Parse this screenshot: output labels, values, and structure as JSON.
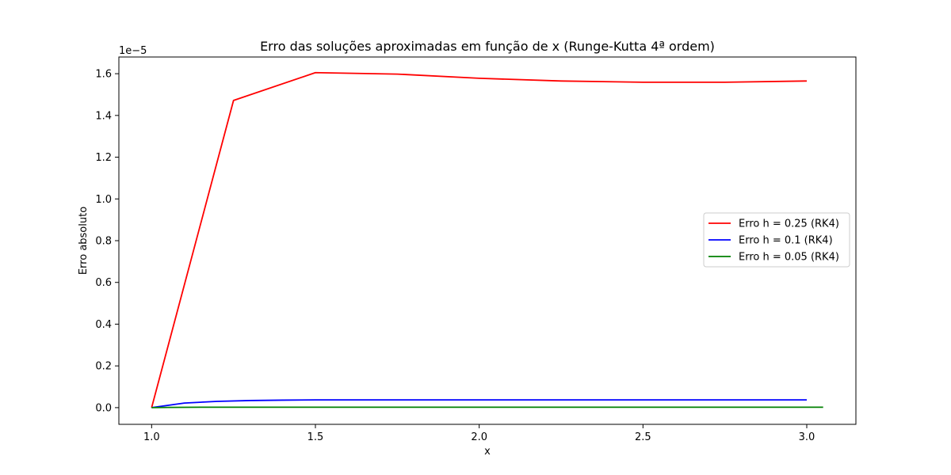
{
  "chart_data": {
    "type": "line",
    "title": "Erro das soluções aproximadas em função de x (Runge-Kutta 4ª ordem)",
    "xlabel": "x",
    "ylabel": "Erro absoluto",
    "y_offset_label": "1e−5",
    "xlim": [
      0.9,
      3.15
    ],
    "ylim": [
      -0.08,
      1.68
    ],
    "y_scale_note": "values in units of 1e-5",
    "x_ticks": [
      1.0,
      1.5,
      2.0,
      2.5,
      3.0
    ],
    "x_tick_labels": [
      "1.0",
      "1.5",
      "2.0",
      "2.5",
      "3.0"
    ],
    "y_ticks": [
      0.0,
      0.2,
      0.4,
      0.6,
      0.8,
      1.0,
      1.2,
      1.4,
      1.6
    ],
    "y_tick_labels": [
      "0.0",
      "0.2",
      "0.4",
      "0.6",
      "0.8",
      "1.0",
      "1.2",
      "1.4",
      "1.6"
    ],
    "grid": false,
    "legend_position": "center-right",
    "series": [
      {
        "name": "Erro h = 0.25 (RK4)",
        "color": "#ff0000",
        "x": [
          1.0,
          1.25,
          1.5,
          1.75,
          2.0,
          2.25,
          2.5,
          2.75,
          3.0
        ],
        "y": [
          0.0,
          1.472,
          1.605,
          1.598,
          1.578,
          1.565,
          1.559,
          1.559,
          1.565
        ]
      },
      {
        "name": "Erro h = 0.1 (RK4)",
        "color": "#0000ff",
        "x": [
          1.0,
          1.1,
          1.2,
          1.3,
          1.4,
          1.5,
          1.6,
          1.7,
          1.8,
          1.9,
          2.0,
          2.1,
          2.2,
          2.3,
          2.4,
          2.5,
          2.6,
          2.7,
          2.8,
          2.9,
          3.0
        ],
        "y": [
          0.0,
          0.022,
          0.03,
          0.034,
          0.036,
          0.037,
          0.037,
          0.037,
          0.037,
          0.037,
          0.037,
          0.037,
          0.037,
          0.037,
          0.037,
          0.037,
          0.037,
          0.037,
          0.037,
          0.037,
          0.037
        ]
      },
      {
        "name": "Erro h = 0.05 (RK4)",
        "color": "#008000",
        "x": [
          1.0,
          1.05,
          1.1,
          1.15,
          1.2,
          1.25,
          1.3,
          1.35,
          1.4,
          1.5,
          1.6,
          1.7,
          1.8,
          1.9,
          2.0,
          2.1,
          2.2,
          2.3,
          2.4,
          2.5,
          2.6,
          2.7,
          2.8,
          2.9,
          3.0,
          3.05
        ],
        "y": [
          0.0,
          0.001,
          0.0015,
          0.002,
          0.002,
          0.002,
          0.002,
          0.002,
          0.002,
          0.002,
          0.002,
          0.002,
          0.002,
          0.002,
          0.002,
          0.002,
          0.002,
          0.002,
          0.002,
          0.002,
          0.002,
          0.002,
          0.002,
          0.002,
          0.002,
          0.002
        ]
      }
    ]
  }
}
